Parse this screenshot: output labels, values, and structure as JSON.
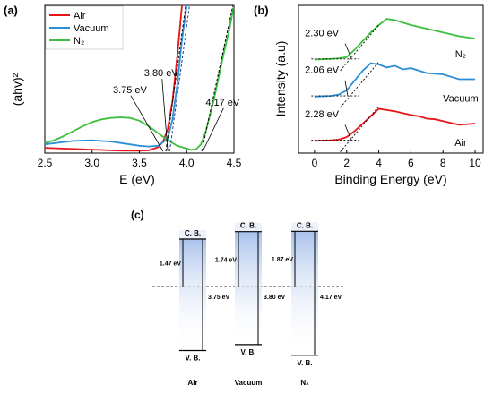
{
  "panels": {
    "a": "(a)",
    "b": "(b)",
    "c": "(c)"
  },
  "chart_data": [
    {
      "panel": "a",
      "type": "line",
      "title": "",
      "xlabel": "E (eV)",
      "ylabel": "(ahv)²",
      "xlim": [
        2.5,
        4.5
      ],
      "xticks": [
        "2.5",
        "3.0",
        "3.5",
        "4.0",
        "4.5"
      ],
      "grid": false,
      "legend_position": "top-left",
      "series": [
        {
          "name": "Air",
          "color": "#e8141a",
          "points": [
            [
              2.5,
              0.25
            ],
            [
              3.0,
              0.12
            ],
            [
              3.3,
              0.05
            ],
            [
              3.5,
              0.04
            ],
            [
              3.6,
              0.08
            ],
            [
              3.7,
              0.3
            ],
            [
              3.75,
              0.7
            ],
            [
              3.8,
              1.6
            ],
            [
              3.85,
              3.6
            ],
            [
              3.9,
              6.8
            ],
            [
              3.95,
              10.5
            ]
          ]
        },
        {
          "name": "Vacuum",
          "color": "#2b8fd6",
          "points": [
            [
              2.5,
              0.5
            ],
            [
              2.8,
              0.75
            ],
            [
              3.0,
              0.8
            ],
            [
              3.2,
              0.7
            ],
            [
              3.4,
              0.5
            ],
            [
              3.5,
              0.4
            ],
            [
              3.6,
              0.35
            ],
            [
              3.7,
              0.4
            ],
            [
              3.8,
              0.9
            ],
            [
              3.85,
              2.3
            ],
            [
              3.9,
              4.8
            ],
            [
              3.95,
              8.0
            ],
            [
              4.0,
              10.5
            ]
          ]
        },
        {
          "name": "N₂",
          "color": "#3cbf3c",
          "points": [
            [
              2.5,
              0.6
            ],
            [
              2.6,
              0.8
            ],
            [
              2.7,
              1.1
            ],
            [
              2.8,
              1.45
            ],
            [
              2.9,
              1.8
            ],
            [
              3.0,
              2.1
            ],
            [
              3.1,
              2.3
            ],
            [
              3.2,
              2.4
            ],
            [
              3.3,
              2.45
            ],
            [
              3.4,
              2.4
            ],
            [
              3.5,
              2.2
            ],
            [
              3.6,
              1.8
            ],
            [
              3.7,
              1.3
            ],
            [
              3.8,
              0.8
            ],
            [
              3.9,
              0.4
            ],
            [
              4.0,
              0.2
            ],
            [
              4.05,
              0.1
            ],
            [
              4.1,
              0.15
            ],
            [
              4.15,
              0.5
            ],
            [
              4.2,
              1.4
            ],
            [
              4.25,
              2.7
            ],
            [
              4.3,
              4.1
            ],
            [
              4.35,
              5.7
            ],
            [
              4.4,
              7.3
            ],
            [
              4.45,
              8.7
            ],
            [
              4.5,
              10.5
            ]
          ]
        }
      ],
      "fits": [
        {
          "color": "#000000",
          "points": [
            [
              3.78,
              0
            ],
            [
              3.99,
              10.5
            ]
          ]
        },
        {
          "color": "#1a3fa0",
          "points": [
            [
              3.82,
              0
            ],
            [
              4.03,
              10.5
            ]
          ]
        },
        {
          "color": "#000000",
          "points": [
            [
              4.16,
              0
            ],
            [
              4.49,
              10.5
            ]
          ]
        }
      ],
      "annotations": [
        {
          "text": "3.80 eV",
          "x": 3.55,
          "y": 5.4,
          "ax": 3.8
        },
        {
          "text": "3.75 eV",
          "x": 3.22,
          "y": 4.2,
          "ax": 3.75
        },
        {
          "text": "4.17 eV",
          "x": 4.2,
          "y": 3.3,
          "ax": 4.17
        }
      ]
    },
    {
      "panel": "b",
      "type": "line",
      "title": "",
      "xlabel": "Binding Energy (eV)",
      "ylabel": "Intensity (a.u)",
      "xlim": [
        -1,
        10.5
      ],
      "xticks": [
        "0",
        "2",
        "4",
        "6",
        "8",
        "10"
      ],
      "grid": false,
      "series": [
        {
          "name": "N₂",
          "color": "#3cbf3c",
          "offset": 6.6,
          "points": [
            [
              0,
              0
            ],
            [
              1,
              0.05
            ],
            [
              1.5,
              0.1
            ],
            [
              2.0,
              0.2
            ],
            [
              2.5,
              0.8
            ],
            [
              3.0,
              1.5
            ],
            [
              3.5,
              2.2
            ],
            [
              4.0,
              2.8
            ],
            [
              4.5,
              3.3
            ],
            [
              5.0,
              3.2
            ],
            [
              6.0,
              2.8
            ],
            [
              7.0,
              2.5
            ],
            [
              8.0,
              2.2
            ],
            [
              9.0,
              1.9
            ],
            [
              10.0,
              1.7
            ]
          ]
        },
        {
          "name": "Vacuum",
          "color": "#2b8fd6",
          "offset": 3.6,
          "points": [
            [
              0,
              0
            ],
            [
              1,
              0.05
            ],
            [
              1.5,
              0.15
            ],
            [
              2.0,
              0.5
            ],
            [
              2.5,
              1.3
            ],
            [
              3.0,
              2.1
            ],
            [
              3.5,
              2.7
            ],
            [
              4.0,
              2.6
            ],
            [
              4.5,
              2.35
            ],
            [
              5.0,
              2.5
            ],
            [
              5.5,
              2.2
            ],
            [
              6.0,
              2.3
            ],
            [
              7.0,
              1.9
            ],
            [
              8.0,
              1.8
            ],
            [
              9.0,
              1.4
            ],
            [
              10.0,
              1.4
            ]
          ]
        },
        {
          "name": "Air",
          "color": "#e8141a",
          "offset": 0,
          "points": [
            [
              0,
              0
            ],
            [
              1,
              0.05
            ],
            [
              1.5,
              0.1
            ],
            [
              2.0,
              0.3
            ],
            [
              2.5,
              0.8
            ],
            [
              3.0,
              1.4
            ],
            [
              3.5,
              2.0
            ],
            [
              4.0,
              2.6
            ],
            [
              4.5,
              2.5
            ],
            [
              5.0,
              2.4
            ],
            [
              6.0,
              2.1
            ],
            [
              6.5,
              2.0
            ],
            [
              7.0,
              1.8
            ],
            [
              7.5,
              1.75
            ],
            [
              8.0,
              1.6
            ],
            [
              9.0,
              1.3
            ],
            [
              10.0,
              1.4
            ]
          ]
        }
      ],
      "annotations": [
        {
          "text": "2.30 eV",
          "series": "N₂",
          "ax": 2.3
        },
        {
          "text": "2.06 eV",
          "series": "Vacuum",
          "ax": 2.06
        },
        {
          "text": "2.28 eV",
          "series": "Air",
          "ax": 2.28
        }
      ]
    }
  ],
  "band_diagram": {
    "columns": [
      {
        "name": "Air",
        "cb_label": "C. B.",
        "vb_label": "V. B.",
        "upper_gap": "1.47 eV",
        "total_gap": "3.75 eV"
      },
      {
        "name": "Vacuum",
        "cb_label": "C. B.",
        "vb_label": "V. B.",
        "upper_gap": "1.74 eV",
        "total_gap": "3.80 eV"
      },
      {
        "name": "N₂",
        "cb_label": "C. B.",
        "vb_label": "V. B.",
        "upper_gap": "1.87 eV",
        "total_gap": "4.17 eV"
      }
    ],
    "fill_color": "#b8cdee"
  }
}
